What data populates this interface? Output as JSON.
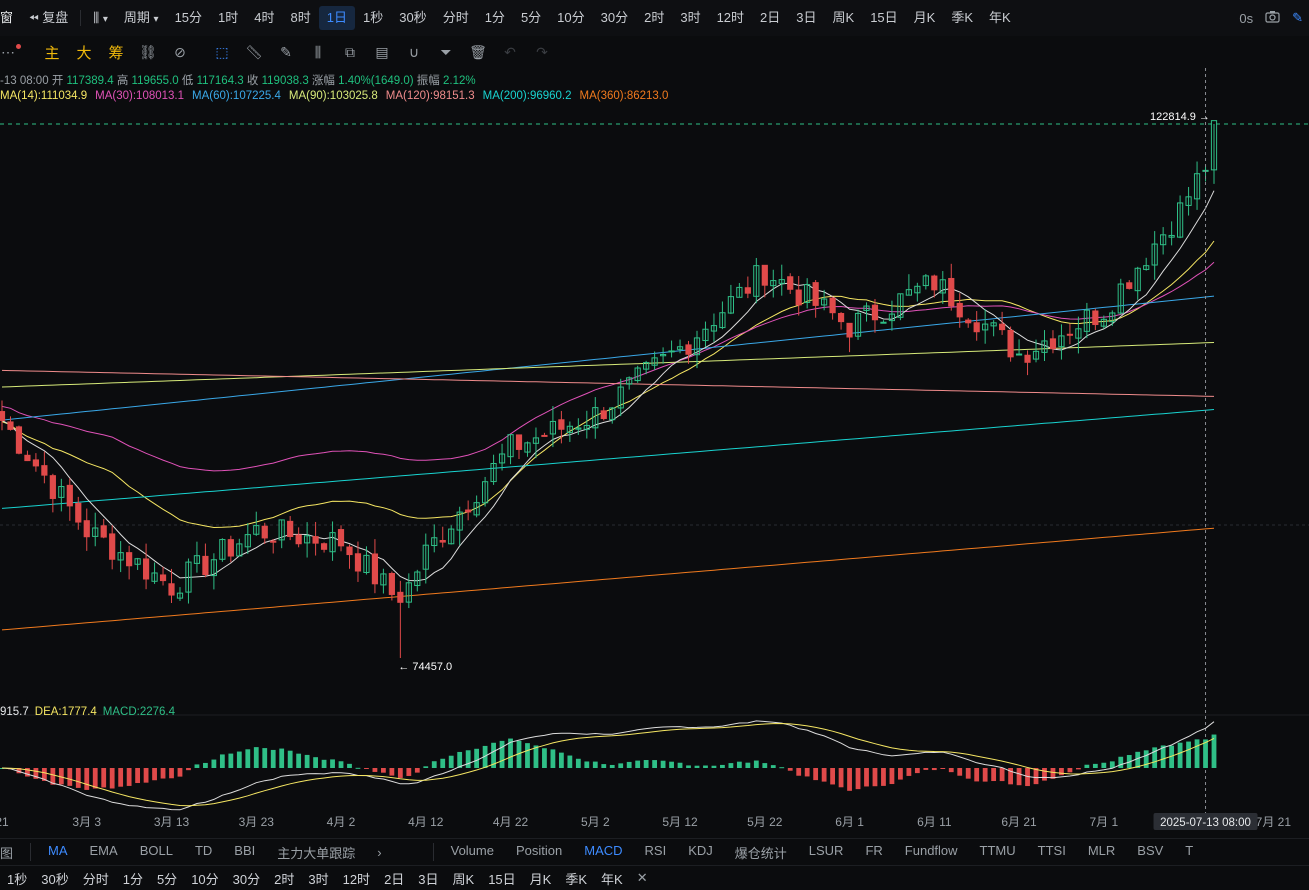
{
  "toolbar": {
    "window_label": "窗",
    "replay_label": "复盘",
    "period_label": "周期",
    "intervals": [
      "15分",
      "1时",
      "4时",
      "8时",
      "1日",
      "1秒",
      "30秒",
      "分时",
      "1分",
      "5分",
      "10分",
      "30分",
      "2时",
      "3时",
      "12时",
      "2日",
      "3日",
      "周K",
      "15日",
      "月K",
      "季K",
      "年K"
    ],
    "active_interval": "1日",
    "countdown": "0s"
  },
  "drawing_toolbar": {
    "major_players_chars": [
      "主",
      "大",
      "筹"
    ]
  },
  "ohlc": {
    "date": "-13 08:00",
    "open_label": "开",
    "open": "117389.4",
    "high_label": "高",
    "high": "119655.0",
    "low_label": "低",
    "low": "117164.3",
    "close_label": "收",
    "close": "119038.3",
    "change_label": "涨幅",
    "change": "1.40%(1649.0)",
    "amplitude_label": "振幅",
    "amplitude": "2.12%"
  },
  "ma_legend": [
    {
      "text": "MA(14):111034.9",
      "color": "#f5e663"
    },
    {
      "text": "MA(30):108013.1",
      "color": "#e052b8"
    },
    {
      "text": "MA(60):107225.4",
      "color": "#3aa8e8"
    },
    {
      "text": "MA(90):103025.8",
      "color": "#d7ea7a"
    },
    {
      "text": "MA(120):98151.3",
      "color": "#f08c8c"
    },
    {
      "text": "MA(200):96960.2",
      "color": "#19d3d0"
    },
    {
      "text": "MA(360):86213.0",
      "color": "#f07a1e"
    }
  ],
  "price_markers": {
    "high_label": "122814.9",
    "low_label": "74457.0"
  },
  "macd_legend": [
    {
      "text": "915.7",
      "color": "#e6e8ea"
    },
    {
      "text": "DEA:1777.4",
      "color": "#f5e663"
    },
    {
      "text": "MACD:2276.4",
      "color": "#2fbf87"
    }
  ],
  "x_axis": {
    "labels": [
      "21",
      "3月 3",
      "3月 13",
      "3月 23",
      "4月 2",
      "4月 12",
      "4月 22",
      "5月 2",
      "5月 12",
      "5月 22",
      "6月 1",
      "6月 11",
      "6月 21",
      "7月 1",
      "7月 21"
    ],
    "cursor_label": "2025-07-13 08:00"
  },
  "colors": {
    "up": "#2fbf87",
    "down": "#e04a4a",
    "accent": "#3d8bff",
    "background": "#0b0c0e"
  },
  "main_indicators": [
    "MA",
    "EMA",
    "BOLL",
    "TD",
    "BBI",
    "主力大单跟踪"
  ],
  "main_indicators_prefix": "图",
  "active_main_indicator": "MA",
  "sub_indicators": [
    "Volume",
    "Position",
    "MACD",
    "RSI",
    "KDJ",
    "爆仓统计",
    "LSUR",
    "FR",
    "Fundflow",
    "TTMU",
    "TTSI",
    "MLR",
    "BSV",
    "T"
  ],
  "active_sub_indicator": "MACD",
  "period_bar": [
    "1秒",
    "30秒",
    "分时",
    "1分",
    "5分",
    "10分",
    "30分",
    "2时",
    "3时",
    "12时",
    "2日",
    "3日",
    "周K",
    "15日",
    "月K",
    "季K",
    "年K"
  ],
  "chart_data": {
    "type": "candlestick",
    "start_date": "2025-02-21",
    "end_date": "2025-07-14",
    "y_range_visible": [
      74457.0,
      122814.9
    ],
    "key_levels": {
      "all_high": 122814.9,
      "all_low": 74457.0
    },
    "candles_anchor_closes": [
      {
        "date": "02-21",
        "close": 96000
      },
      {
        "date": "03-03",
        "close": 86000
      },
      {
        "date": "03-13",
        "close": 81000
      },
      {
        "date": "03-23",
        "close": 86000
      },
      {
        "date": "04-02",
        "close": 85000
      },
      {
        "date": "04-09",
        "close": 79500
      },
      {
        "date": "04-12",
        "close": 84000
      },
      {
        "date": "04-22",
        "close": 93500
      },
      {
        "date": "05-02",
        "close": 96500
      },
      {
        "date": "05-12",
        "close": 102500
      },
      {
        "date": "05-22",
        "close": 109500
      },
      {
        "date": "06-01",
        "close": 104500
      },
      {
        "date": "06-11",
        "close": 108500
      },
      {
        "date": "06-21",
        "close": 102000
      },
      {
        "date": "07-01",
        "close": 106000
      },
      {
        "date": "07-10",
        "close": 115000
      },
      {
        "date": "07-13",
        "close": 119038.3
      },
      {
        "date": "07-14",
        "close": 122000
      }
    ],
    "moving_averages": [
      {
        "name": "MA(14)",
        "last": 111034.9
      },
      {
        "name": "MA(30)",
        "last": 108013.1
      },
      {
        "name": "MA(60)",
        "last": 107225.4
      },
      {
        "name": "MA(90)",
        "last": 103025.8
      },
      {
        "name": "MA(120)",
        "last": 98151.3
      },
      {
        "name": "MA(200)",
        "last": 96960.2
      },
      {
        "name": "MA(360)",
        "last": 86213.0
      }
    ],
    "macd": {
      "dif": 915.7,
      "dea": 1777.4,
      "macd": 2276.4
    }
  }
}
